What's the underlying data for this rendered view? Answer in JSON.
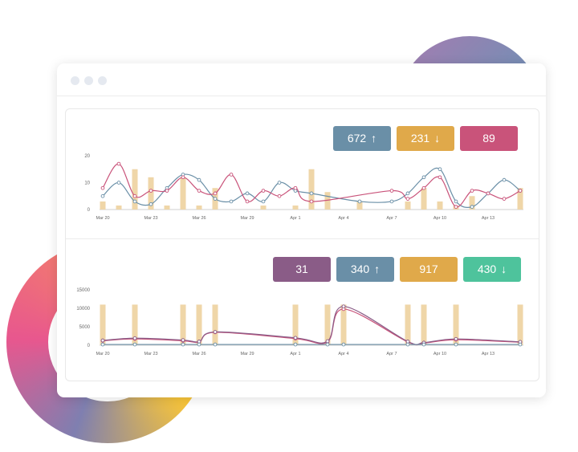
{
  "colors": {
    "blue": "#6a8fa7",
    "gold": "#e0a94a",
    "pink": "#c9537a",
    "purple": "#8a5c87",
    "green": "#4ec39c",
    "bar": "#efd6a8"
  },
  "top": {
    "badges": [
      {
        "value": "672",
        "arrow": "↑",
        "color": "#6a8fa7"
      },
      {
        "value": "231",
        "arrow": "↓",
        "color": "#e0a94a"
      },
      {
        "value": "89",
        "arrow": "",
        "color": "#c9537a"
      }
    ],
    "chart_data": {
      "type": "line",
      "x_ticks": [
        "Mar 20",
        "Mar 23",
        "Mar 26",
        "Mar 29",
        "Apr 1",
        "Apr 4",
        "Apr 7",
        "Apr 10",
        "Apr 13"
      ],
      "y_ticks": [
        "20",
        "10",
        "0"
      ],
      "ylim": [
        0,
        20
      ],
      "bars": [
        {
          "x": 0,
          "y": 3
        },
        {
          "x": 1,
          "y": 1.5
        },
        {
          "x": 2,
          "y": 15
        },
        {
          "x": 3,
          "y": 12
        },
        {
          "x": 4,
          "y": 1.5
        },
        {
          "x": 5,
          "y": 12
        },
        {
          "x": 6,
          "y": 1.5
        },
        {
          "x": 7,
          "y": 8
        },
        {
          "x": 10,
          "y": 1.5
        },
        {
          "x": 12,
          "y": 1.5
        },
        {
          "x": 13,
          "y": 15
        },
        {
          "x": 14,
          "y": 6.5
        },
        {
          "x": 16,
          "y": 3
        },
        {
          "x": 19,
          "y": 3
        },
        {
          "x": 20,
          "y": 8
        },
        {
          "x": 21,
          "y": 3
        },
        {
          "x": 22,
          "y": 1.5
        },
        {
          "x": 23,
          "y": 5
        },
        {
          "x": 26,
          "y": 8
        }
      ],
      "series": [
        {
          "color": "#6a8fa7",
          "points": [
            [
              0,
              5
            ],
            [
              1,
              10
            ],
            [
              2,
              3
            ],
            [
              3,
              2
            ],
            [
              4,
              8
            ],
            [
              5,
              13
            ],
            [
              6,
              11
            ],
            [
              7,
              4
            ],
            [
              8,
              3
            ],
            [
              9,
              6
            ],
            [
              10,
              3
            ],
            [
              11,
              10
            ],
            [
              12,
              7
            ],
            [
              13,
              6
            ],
            [
              16,
              3
            ],
            [
              18,
              3
            ],
            [
              19,
              6
            ],
            [
              20,
              12
            ],
            [
              21,
              15
            ],
            [
              22,
              3
            ],
            [
              23,
              1
            ],
            [
              24,
              6
            ],
            [
              25,
              11
            ],
            [
              26,
              7
            ]
          ]
        },
        {
          "color": "#c9537a",
          "points": [
            [
              0,
              8
            ],
            [
              1,
              17
            ],
            [
              2,
              5
            ],
            [
              3,
              7
            ],
            [
              4,
              7
            ],
            [
              5,
              12
            ],
            [
              6,
              7
            ],
            [
              7,
              6
            ],
            [
              8,
              13
            ],
            [
              9,
              3
            ],
            [
              10,
              7
            ],
            [
              11,
              5
            ],
            [
              12,
              8
            ],
            [
              13,
              3
            ],
            [
              18,
              7
            ],
            [
              19,
              4
            ],
            [
              20,
              8
            ],
            [
              21,
              12
            ],
            [
              22,
              1
            ],
            [
              23,
              7
            ],
            [
              24,
              6
            ],
            [
              25,
              4
            ],
            [
              26,
              7
            ]
          ]
        }
      ]
    }
  },
  "bottom": {
    "badges": [
      {
        "value": "31",
        "arrow": "",
        "color": "#8a5c87"
      },
      {
        "value": "340",
        "arrow": "↑",
        "color": "#6a8fa7"
      },
      {
        "value": "917",
        "arrow": "",
        "color": "#e0a94a"
      },
      {
        "value": "430",
        "arrow": "↓",
        "color": "#4ec39c"
      }
    ],
    "chart_data": {
      "type": "line",
      "x_ticks": [
        "Mar 20",
        "Mar 23",
        "Mar 26",
        "Mar 29",
        "Apr 1",
        "Apr 4",
        "Apr 7",
        "Apr 10",
        "Apr 13"
      ],
      "y_ticks": [
        "15000",
        "10000",
        "5000",
        "0"
      ],
      "ylim": [
        0,
        15000
      ],
      "bars": [
        {
          "x": 0,
          "y": 11000
        },
        {
          "x": 2,
          "y": 11000
        },
        {
          "x": 5,
          "y": 11000
        },
        {
          "x": 6,
          "y": 11000
        },
        {
          "x": 7,
          "y": 11000
        },
        {
          "x": 12,
          "y": 11000
        },
        {
          "x": 14,
          "y": 11000
        },
        {
          "x": 15,
          "y": 11000
        },
        {
          "x": 19,
          "y": 11000
        },
        {
          "x": 20,
          "y": 11000
        },
        {
          "x": 22,
          "y": 11000
        },
        {
          "x": 26,
          "y": 11000
        }
      ],
      "series": [
        {
          "color": "#c9537a",
          "points": [
            [
              0,
              1200
            ],
            [
              2,
              1700
            ],
            [
              5,
              1200
            ],
            [
              6,
              900
            ],
            [
              7,
              3500
            ],
            [
              12,
              1800
            ],
            [
              14,
              900
            ],
            [
              15,
              9800
            ],
            [
              19,
              900
            ],
            [
              20,
              600
            ],
            [
              22,
              1500
            ],
            [
              26,
              800
            ]
          ]
        },
        {
          "color": "#8a5c87",
          "points": [
            [
              0,
              1300
            ],
            [
              2,
              1900
            ],
            [
              5,
              1400
            ],
            [
              6,
              1000
            ],
            [
              7,
              3600
            ],
            [
              12,
              2000
            ],
            [
              14,
              1100
            ],
            [
              15,
              10500
            ],
            [
              19,
              1000
            ],
            [
              20,
              700
            ],
            [
              22,
              1700
            ],
            [
              26,
              900
            ]
          ]
        },
        {
          "color": "#6a8fa7",
          "points": [
            [
              0,
              200
            ],
            [
              2,
              200
            ],
            [
              5,
              200
            ],
            [
              6,
              200
            ],
            [
              7,
              200
            ],
            [
              12,
              200
            ],
            [
              14,
              200
            ],
            [
              15,
              200
            ],
            [
              19,
              200
            ],
            [
              20,
              200
            ],
            [
              22,
              200
            ],
            [
              26,
              200
            ]
          ]
        }
      ]
    }
  }
}
